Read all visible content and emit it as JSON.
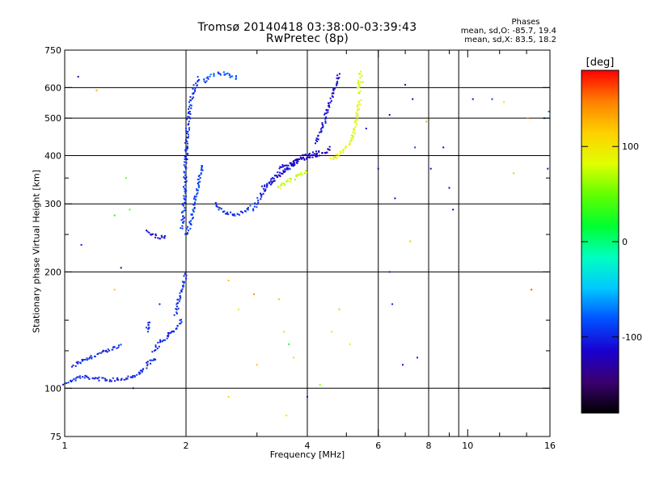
{
  "header": {
    "title_line1": "Tromsø 20140418 03:38:00-03:39:43",
    "title_line2": "RwPretec (8p)",
    "phase_heading": "Phases",
    "phase_o": "mean, sd,O: -85.7, 19.4",
    "phase_x": "mean, sd,X: 83.5, 18.2"
  },
  "colorbar": {
    "unit_label": "[deg]",
    "range": [
      -180,
      180
    ],
    "tick_labels": [
      "100",
      "0",
      "-100"
    ],
    "tick_values": [
      100,
      0,
      -100
    ],
    "colors": [
      "#000000",
      "#3a0070",
      "#1a00d0",
      "#0050ff",
      "#00c8ff",
      "#00ffc0",
      "#00ff30",
      "#60ff00",
      "#e0ff00",
      "#ffd000",
      "#ff8000",
      "#ff0000"
    ]
  },
  "chart_data": {
    "type": "scatter",
    "title": "Tromsø 20140418 03:38:00-03:39:43",
    "subtitle": "RwPretec (8p)",
    "xlabel": "Frequency [MHz]",
    "ylabel": "Stationary phase Virtual Height [km]",
    "x_scale": "log",
    "y_scale": "log",
    "xlim": [
      1,
      16
    ],
    "ylim": [
      75,
      750
    ],
    "x_ticks": [
      1,
      2,
      4,
      6,
      8,
      10,
      16
    ],
    "x_tick_labels": [
      "1",
      "2",
      "4",
      "6",
      "8",
      "10",
      "16"
    ],
    "x_minor_ticks": [
      3,
      5,
      7,
      9,
      12,
      14
    ],
    "y_ticks": [
      75,
      100,
      200,
      300,
      400,
      500,
      600,
      750
    ],
    "y_tick_labels": [
      "75",
      "100",
      "200",
      "300",
      "400",
      "500",
      "600",
      "750"
    ],
    "y_minor_ticks": [
      125,
      150,
      250,
      350
    ],
    "grid_x": [
      2,
      4,
      6,
      8,
      9.5
    ],
    "grid_y": [
      100,
      200,
      300,
      400,
      500,
      600
    ],
    "traces": [
      {
        "phase": -100,
        "x": [
          1.0,
          1.1,
          1.2,
          1.3,
          1.4,
          1.5,
          1.55,
          1.6,
          1.65,
          1.7
        ],
        "y": [
          103,
          107,
          106,
          105,
          106,
          108,
          110,
          115,
          118,
          120
        ]
      },
      {
        "phase": -100,
        "x": [
          1.05,
          1.1,
          1.2,
          1.3,
          1.38
        ],
        "y": [
          113,
          118,
          122,
          126,
          129
        ]
      },
      {
        "phase": -100,
        "x": [
          1.65,
          1.75,
          1.85,
          1.9,
          1.95
        ],
        "y": [
          125,
          133,
          140,
          143,
          152
        ]
      },
      {
        "phase": -100,
        "x": [
          1.6,
          1.62
        ],
        "y": [
          140,
          150
        ]
      },
      {
        "phase": -95,
        "x": [
          1.88,
          1.9,
          1.93,
          1.96,
          1.98,
          2.0
        ],
        "y": [
          155,
          160,
          175,
          185,
          190,
          200
        ]
      },
      {
        "phase": -110,
        "x": [
          1.6,
          1.65,
          1.7,
          1.75,
          1.8
        ],
        "y": [
          255,
          250,
          246,
          246,
          247
        ]
      },
      {
        "phase": -95,
        "x": [
          1.95,
          1.97,
          1.99,
          2.0,
          2.02,
          2.04,
          2.06,
          2.1,
          2.15
        ],
        "y": [
          260,
          285,
          330,
          400,
          470,
          520,
          560,
          600,
          640
        ]
      },
      {
        "phase": -90,
        "x": [
          2.0,
          2.05,
          2.1,
          2.15,
          2.2
        ],
        "y": [
          250,
          265,
          300,
          340,
          380
        ]
      },
      {
        "phase": -95,
        "x": [
          2.35,
          2.5,
          2.65,
          2.8,
          2.9
        ],
        "y": [
          300,
          285,
          280,
          288,
          297
        ]
      },
      {
        "phase": -85,
        "x": [
          2.2,
          2.3,
          2.4,
          2.5,
          2.6,
          2.7
        ],
        "y": [
          620,
          640,
          655,
          650,
          640,
          635
        ]
      },
      {
        "phase": -100,
        "x": [
          2.95,
          3.0,
          3.1,
          3.2,
          3.3,
          3.4,
          3.5,
          3.6,
          3.8
        ],
        "y": [
          290,
          305,
          320,
          335,
          350,
          360,
          365,
          370,
          385
        ]
      },
      {
        "phase": -115,
        "x": [
          3.1,
          3.3,
          3.5,
          3.7,
          3.9,
          4.1,
          4.3
        ],
        "y": [
          330,
          345,
          365,
          385,
          400,
          405,
          410
        ]
      },
      {
        "phase": -120,
        "x": [
          3.4,
          3.6,
          3.8,
          4.0,
          4.2,
          4.4,
          4.6
        ],
        "y": [
          370,
          380,
          390,
          395,
          400,
          405,
          420
        ]
      },
      {
        "phase": -110,
        "x": [
          4.2,
          4.3,
          4.4,
          4.5,
          4.6,
          4.7,
          4.8
        ],
        "y": [
          430,
          460,
          490,
          530,
          570,
          610,
          650
        ]
      },
      {
        "phase": 75,
        "x": [
          3.4,
          3.6,
          3.8,
          4.0
        ],
        "y": [
          330,
          345,
          355,
          365
        ]
      },
      {
        "phase": 85,
        "x": [
          4.6,
          4.8,
          5.0,
          5.2,
          5.3,
          5.4
        ],
        "y": [
          390,
          405,
          420,
          450,
          490,
          560
        ]
      },
      {
        "phase": 80,
        "x": [
          5.35,
          5.4,
          5.42
        ],
        "y": [
          580,
          620,
          660
        ]
      }
    ],
    "scattered_points": [
      {
        "x": 1.08,
        "y": 640,
        "phase": -110
      },
      {
        "x": 1.2,
        "y": 590,
        "phase": 130
      },
      {
        "x": 1.33,
        "y": 280,
        "phase": 20
      },
      {
        "x": 1.38,
        "y": 205,
        "phase": -140
      },
      {
        "x": 1.1,
        "y": 235,
        "phase": -105
      },
      {
        "x": 1.42,
        "y": 350,
        "phase": 50
      },
      {
        "x": 1.45,
        "y": 290,
        "phase": 40
      },
      {
        "x": 1.33,
        "y": 180,
        "phase": 120
      },
      {
        "x": 1.72,
        "y": 165,
        "phase": -100
      },
      {
        "x": 1.48,
        "y": 100,
        "phase": -130
      },
      {
        "x": 2.55,
        "y": 190,
        "phase": 120
      },
      {
        "x": 2.7,
        "y": 160,
        "phase": 90
      },
      {
        "x": 2.55,
        "y": 95,
        "phase": 110
      },
      {
        "x": 2.95,
        "y": 175,
        "phase": 140
      },
      {
        "x": 3.0,
        "y": 115,
        "phase": 120
      },
      {
        "x": 3.4,
        "y": 170,
        "phase": 120
      },
      {
        "x": 3.5,
        "y": 140,
        "phase": 110
      },
      {
        "x": 3.6,
        "y": 130,
        "phase": 20
      },
      {
        "x": 3.55,
        "y": 85,
        "phase": 100
      },
      {
        "x": 3.7,
        "y": 120,
        "phase": 110
      },
      {
        "x": 4.0,
        "y": 95,
        "phase": -110
      },
      {
        "x": 4.3,
        "y": 102,
        "phase": 60
      },
      {
        "x": 4.6,
        "y": 140,
        "phase": 100
      },
      {
        "x": 4.8,
        "y": 160,
        "phase": 120
      },
      {
        "x": 5.1,
        "y": 130,
        "phase": 90
      },
      {
        "x": 5.6,
        "y": 470,
        "phase": -120
      },
      {
        "x": 5.5,
        "y": 620,
        "phase": 100
      },
      {
        "x": 6.0,
        "y": 370,
        "phase": -110
      },
      {
        "x": 6.4,
        "y": 510,
        "phase": -120
      },
      {
        "x": 6.6,
        "y": 310,
        "phase": -120
      },
      {
        "x": 6.4,
        "y": 200,
        "phase": -100
      },
      {
        "x": 6.5,
        "y": 165,
        "phase": -100
      },
      {
        "x": 6.9,
        "y": 115,
        "phase": -110
      },
      {
        "x": 7.0,
        "y": 610,
        "phase": -130
      },
      {
        "x": 7.3,
        "y": 560,
        "phase": -120
      },
      {
        "x": 7.4,
        "y": 420,
        "phase": -90
      },
      {
        "x": 7.2,
        "y": 240,
        "phase": 120
      },
      {
        "x": 7.5,
        "y": 120,
        "phase": -100
      },
      {
        "x": 7.9,
        "y": 490,
        "phase": 130
      },
      {
        "x": 8.1,
        "y": 370,
        "phase": -120
      },
      {
        "x": 8.7,
        "y": 420,
        "phase": -120
      },
      {
        "x": 9.0,
        "y": 330,
        "phase": -120
      },
      {
        "x": 9.2,
        "y": 290,
        "phase": -120
      },
      {
        "x": 10.3,
        "y": 560,
        "phase": -110
      },
      {
        "x": 11.5,
        "y": 560,
        "phase": -90
      },
      {
        "x": 12.3,
        "y": 550,
        "phase": 100
      },
      {
        "x": 13.0,
        "y": 360,
        "phase": 60
      },
      {
        "x": 14.1,
        "y": 500,
        "phase": 140
      },
      {
        "x": 14.4,
        "y": 180,
        "phase": 160
      },
      {
        "x": 15.5,
        "y": 500,
        "phase": -90
      },
      {
        "x": 15.8,
        "y": 370,
        "phase": -110
      },
      {
        "x": 15.9,
        "y": 520,
        "phase": -70
      }
    ]
  }
}
